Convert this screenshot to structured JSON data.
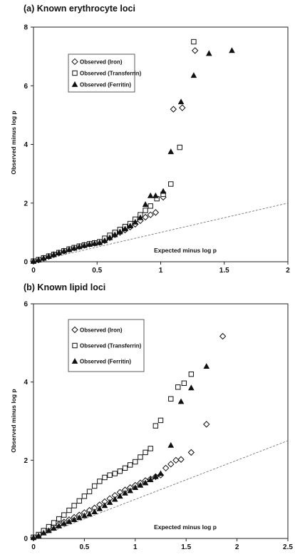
{
  "chart_data": [
    {
      "type": "scatter",
      "title": "(a) Known erythrocyte loci",
      "xlabel": "Expected minus log p",
      "ylabel": "Observed minus log p",
      "xlim": [
        0,
        2
      ],
      "ylim": [
        0,
        8
      ],
      "xticks": [
        "0",
        "0.5",
        "1",
        "1.5",
        "2"
      ],
      "yticks": [
        "0",
        "2",
        "4",
        "6",
        "8"
      ],
      "legend_position": "upper-left",
      "grid": false,
      "reference_line": {
        "slope": 1,
        "style": "dashed"
      },
      "series": [
        {
          "name": "Observed (Iron)",
          "marker": "diamond",
          "x": [
            0.0,
            0.04,
            0.08,
            0.12,
            0.16,
            0.2,
            0.24,
            0.28,
            0.32,
            0.36,
            0.4,
            0.44,
            0.48,
            0.52,
            0.56,
            0.6,
            0.64,
            0.68,
            0.72,
            0.76,
            0.8,
            0.84,
            0.88,
            0.92,
            0.96,
            1.02,
            1.1,
            1.17,
            1.27
          ],
          "y": [
            0.02,
            0.06,
            0.12,
            0.18,
            0.24,
            0.3,
            0.36,
            0.42,
            0.47,
            0.52,
            0.56,
            0.6,
            0.63,
            0.66,
            0.72,
            0.82,
            0.92,
            1.0,
            1.08,
            1.18,
            1.28,
            1.4,
            1.52,
            1.6,
            1.68,
            2.2,
            5.2,
            5.25,
            7.2
          ]
        },
        {
          "name": "Observed (Transferrin)",
          "marker": "square",
          "x": [
            0.0,
            0.04,
            0.08,
            0.12,
            0.16,
            0.2,
            0.24,
            0.28,
            0.32,
            0.36,
            0.4,
            0.44,
            0.48,
            0.52,
            0.56,
            0.6,
            0.64,
            0.68,
            0.72,
            0.76,
            0.8,
            0.84,
            0.88,
            0.92,
            0.97,
            1.02,
            1.08,
            1.15,
            1.26
          ],
          "y": [
            0.02,
            0.07,
            0.13,
            0.19,
            0.25,
            0.31,
            0.37,
            0.43,
            0.48,
            0.53,
            0.57,
            0.61,
            0.64,
            0.68,
            0.8,
            0.9,
            1.0,
            1.1,
            1.2,
            1.3,
            1.45,
            1.6,
            1.75,
            1.9,
            2.15,
            2.3,
            2.65,
            3.9,
            7.5
          ]
        },
        {
          "name": "Observed (Ferritin)",
          "marker": "triangle",
          "x": [
            0.0,
            0.04,
            0.08,
            0.12,
            0.16,
            0.2,
            0.24,
            0.28,
            0.32,
            0.36,
            0.4,
            0.44,
            0.48,
            0.52,
            0.56,
            0.6,
            0.64,
            0.68,
            0.72,
            0.76,
            0.8,
            0.84,
            0.88,
            0.92,
            0.96,
            1.02,
            1.08,
            1.16,
            1.26,
            1.38,
            1.56
          ],
          "y": [
            0.02,
            0.06,
            0.12,
            0.18,
            0.24,
            0.3,
            0.36,
            0.41,
            0.46,
            0.51,
            0.55,
            0.59,
            0.62,
            0.65,
            0.72,
            0.82,
            0.92,
            1.02,
            1.12,
            1.22,
            1.35,
            1.5,
            1.95,
            2.25,
            2.25,
            2.4,
            3.75,
            5.45,
            6.35,
            7.1,
            7.2
          ]
        }
      ]
    },
    {
      "type": "scatter",
      "title": "(b) Known lipid loci",
      "xlabel": "Expected minus log p",
      "ylabel": "Observed minus log p",
      "xlim": [
        0,
        2.5
      ],
      "ylim": [
        0,
        6
      ],
      "xticks": [
        "0",
        "0.5",
        "1",
        "1.5",
        "2",
        "2.5"
      ],
      "yticks": [
        "0",
        "2",
        "4",
        "6"
      ],
      "legend_position": "upper-left",
      "grid": false,
      "reference_line": {
        "slope": 1,
        "style": "dashed"
      },
      "series": [
        {
          "name": "Observed (Iron)",
          "marker": "diamond",
          "x": [
            0.0,
            0.05,
            0.1,
            0.15,
            0.2,
            0.25,
            0.3,
            0.35,
            0.4,
            0.45,
            0.5,
            0.55,
            0.6,
            0.65,
            0.7,
            0.75,
            0.8,
            0.85,
            0.9,
            0.95,
            1.0,
            1.05,
            1.1,
            1.15,
            1.2,
            1.25,
            1.3,
            1.35,
            1.4,
            1.45,
            1.55,
            1.7,
            1.86
          ],
          "y": [
            0.02,
            0.08,
            0.16,
            0.23,
            0.3,
            0.36,
            0.42,
            0.48,
            0.54,
            0.6,
            0.66,
            0.72,
            0.78,
            0.86,
            0.94,
            1.02,
            1.1,
            1.18,
            1.24,
            1.3,
            1.36,
            1.42,
            1.48,
            1.52,
            1.58,
            1.62,
            1.8,
            1.9,
            2.0,
            2.02,
            2.2,
            2.92,
            5.17
          ]
        },
        {
          "name": "Observed (Transferrin)",
          "marker": "square",
          "x": [
            0.0,
            0.05,
            0.1,
            0.15,
            0.2,
            0.25,
            0.3,
            0.35,
            0.4,
            0.45,
            0.5,
            0.55,
            0.6,
            0.65,
            0.7,
            0.75,
            0.8,
            0.85,
            0.9,
            0.95,
            1.0,
            1.05,
            1.1,
            1.15,
            1.2,
            1.25,
            1.35,
            1.42,
            1.48,
            1.55
          ],
          "y": [
            0.03,
            0.1,
            0.2,
            0.3,
            0.4,
            0.5,
            0.6,
            0.72,
            0.84,
            0.96,
            1.08,
            1.2,
            1.34,
            1.46,
            1.56,
            1.62,
            1.66,
            1.72,
            1.8,
            1.88,
            1.96,
            2.08,
            2.2,
            2.3,
            2.88,
            3.02,
            3.57,
            3.87,
            3.97,
            4.2
          ]
        },
        {
          "name": "Observed (Ferritin)",
          "marker": "triangle",
          "x": [
            0.0,
            0.05,
            0.1,
            0.15,
            0.2,
            0.25,
            0.3,
            0.35,
            0.4,
            0.45,
            0.5,
            0.55,
            0.6,
            0.65,
            0.7,
            0.75,
            0.8,
            0.85,
            0.9,
            0.95,
            1.0,
            1.05,
            1.1,
            1.15,
            1.2,
            1.25,
            1.35,
            1.45,
            1.55,
            1.7
          ],
          "y": [
            0.02,
            0.07,
            0.14,
            0.2,
            0.26,
            0.32,
            0.38,
            0.43,
            0.48,
            0.53,
            0.58,
            0.62,
            0.68,
            0.76,
            0.84,
            0.92,
            1.0,
            1.08,
            1.16,
            1.22,
            1.3,
            1.36,
            1.42,
            1.5,
            1.58,
            1.66,
            2.38,
            3.5,
            3.85,
            4.4
          ]
        }
      ]
    }
  ]
}
